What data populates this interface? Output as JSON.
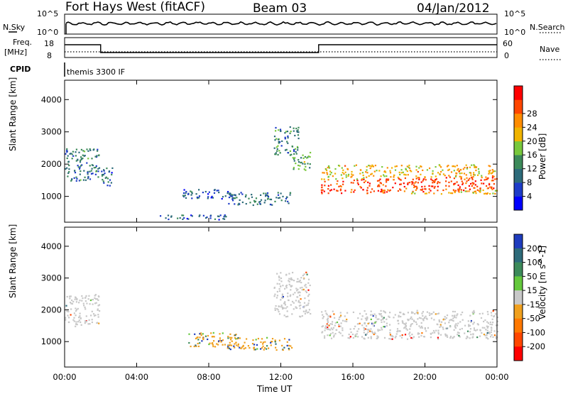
{
  "header": {
    "station": "Fort Hays West (fitACF)",
    "beam": "Beam 03",
    "date": "04/Jan/2012"
  },
  "panels": {
    "nsky_label": "N.Sky",
    "nsearch_label": "N.Search",
    "freq_label_1": "Freq.",
    "freq_label_2": "[MHz]",
    "nave_label": "Nave",
    "cpid_label": "CPID",
    "cpid_value": "themis 3300 IF",
    "noise_left_ticks": [
      "10^5",
      "10^0"
    ],
    "noise_right_ticks": [
      "10^5",
      "10^0"
    ],
    "freq_ticks": [
      "18",
      "8"
    ],
    "nave_ticks": [
      "60",
      "0"
    ]
  },
  "chart_data": [
    {
      "type": "heatmap",
      "title": "",
      "xlabel": "Time UT",
      "ylabel": "Slant Range [km]",
      "xlim_hours": [
        0,
        24
      ],
      "ylim_km": [
        200,
        4600
      ],
      "x_ticks": [
        "00:00",
        "04:00",
        "08:00",
        "12:00",
        "16:00",
        "20:00",
        "00:00"
      ],
      "y_ticks": [
        1000,
        2000,
        3000,
        4000
      ],
      "colorbar": {
        "label": "Power [dB]",
        "ticks": [
          4,
          8,
          12,
          16,
          20,
          24,
          28
        ],
        "colors": [
          "#0000ff",
          "#1e3cc8",
          "#2d6b7a",
          "#3c8a5a",
          "#78c83c",
          "#f0b400",
          "#ff8c00",
          "#ff4600",
          "#ff0000"
        ]
      },
      "echo_regions": [
        {
          "t": [
            0.0,
            1.9
          ],
          "r": [
            1500,
            2500
          ],
          "level": 10
        },
        {
          "t": [
            1.9,
            2.7
          ],
          "r": [
            1350,
            1900
          ],
          "level": 8
        },
        {
          "t": [
            4.7,
            9.0
          ],
          "r": [
            300,
            450
          ],
          "level": 8
        },
        {
          "t": [
            6.5,
            9.5
          ],
          "r": [
            950,
            1250
          ],
          "level": 7
        },
        {
          "t": [
            9.0,
            12.6
          ],
          "r": [
            750,
            1150
          ],
          "level": 9
        },
        {
          "t": [
            11.6,
            13.0
          ],
          "r": [
            2300,
            3200
          ],
          "level": 11
        },
        {
          "t": [
            12.6,
            13.6
          ],
          "r": [
            1800,
            2400
          ],
          "level": 13
        },
        {
          "t": [
            14.2,
            24.0
          ],
          "r": [
            1100,
            2000
          ],
          "level": 20
        }
      ]
    },
    {
      "type": "heatmap",
      "title": "",
      "xlabel": "Time UT",
      "ylabel": "Slant Range [km]",
      "xlim_hours": [
        0,
        24
      ],
      "ylim_km": [
        200,
        4600
      ],
      "x_ticks": [
        "00:00",
        "04:00",
        "08:00",
        "12:00",
        "16:00",
        "20:00",
        "00:00"
      ],
      "y_ticks": [
        1000,
        2000,
        3000,
        4000
      ],
      "colorbar": {
        "label": "Velocity [m s^-1]",
        "ticks": [
          200,
          100,
          50,
          15,
          -15,
          -50,
          -100,
          -200
        ],
        "colors": [
          "#1e3cbe",
          "#2d6b7a",
          "#3c8a5a",
          "#64c83c",
          "#c8c8c8",
          "#f0a01e",
          "#ff7800",
          "#ff4600",
          "#ff0000"
        ]
      },
      "echo_regions": [
        {
          "t": [
            0.0,
            1.9
          ],
          "r": [
            1500,
            2500
          ],
          "class": "ground"
        },
        {
          "t": [
            6.8,
            9.5
          ],
          "r": [
            850,
            1300
          ],
          "class": "negative"
        },
        {
          "t": [
            9.0,
            12.6
          ],
          "r": [
            750,
            1150
          ],
          "class": "negative"
        },
        {
          "t": [
            11.6,
            13.6
          ],
          "r": [
            1800,
            3200
          ],
          "class": "ground"
        },
        {
          "t": [
            14.2,
            24.0
          ],
          "r": [
            1100,
            2000
          ],
          "class": "ground"
        }
      ]
    }
  ]
}
